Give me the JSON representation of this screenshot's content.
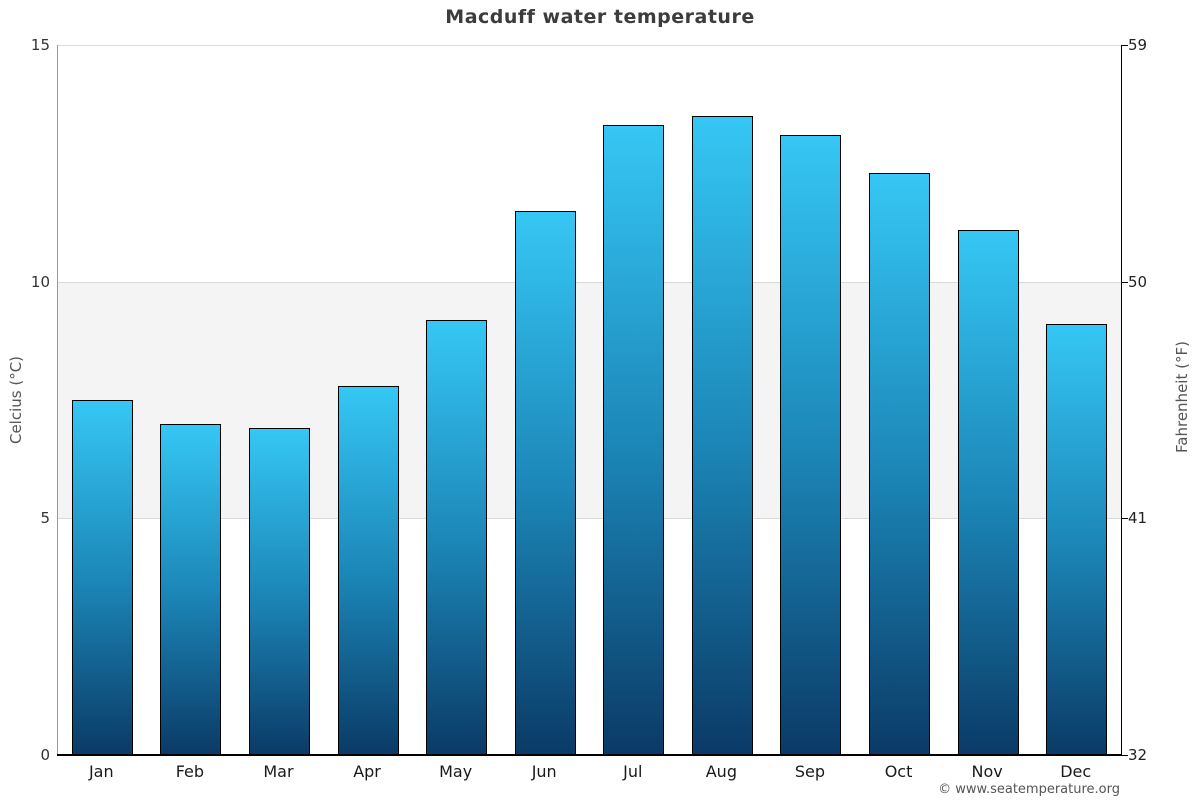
{
  "title": "Macduff water temperature",
  "footer": "© www.seatemperature.org",
  "axes": {
    "left_title": "Celcius (°C)",
    "right_title": "Fahrenheit (°F)"
  },
  "chart_data": {
    "type": "bar",
    "title": "Macduff water temperature",
    "categories": [
      "Jan",
      "Feb",
      "Mar",
      "Apr",
      "May",
      "Jun",
      "Jul",
      "Aug",
      "Sep",
      "Oct",
      "Nov",
      "Dec"
    ],
    "values": [
      7.5,
      7.0,
      6.9,
      7.8,
      9.2,
      11.5,
      13.3,
      13.5,
      13.1,
      12.3,
      11.1,
      9.1
    ],
    "unit": "°C",
    "ylabel_left": "Celcius (°C)",
    "ylabel_right": "Fahrenheit (°F)",
    "ylim": [
      0,
      15
    ],
    "yticks_left": [
      0,
      5,
      10,
      15
    ],
    "yticks_right": [
      32,
      41,
      50,
      59
    ],
    "shaded_band_celsius": [
      5,
      10
    ],
    "grid": "horizontal-only",
    "legend": "none",
    "colors": {
      "bar_gradient_top": "#36c7f4",
      "bar_gradient_bottom": "#0b3a66",
      "bar_border": "#000000",
      "band_fill": "#f4f4f4",
      "gridline": "#d9d9d9",
      "axis_left_line": "#999999",
      "axis_right_line": "#000000",
      "axis_bottom_line": "#000000",
      "title_text": "#3c3c3c",
      "footer_text": "#555555"
    }
  }
}
